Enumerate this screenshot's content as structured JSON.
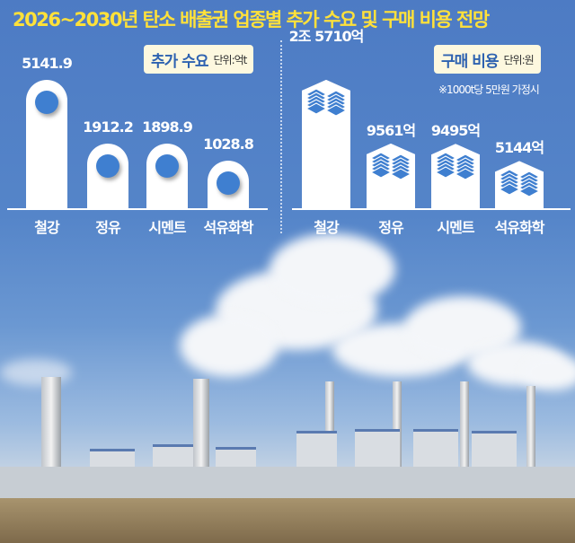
{
  "title": "2026~2030년 탄소 배출권 업종별 추가 수요 및 구매 비용 전망",
  "chart_data": [
    {
      "type": "bar",
      "legend_key": "추가 수요",
      "unit": "단위:억t",
      "categories": [
        "철강",
        "정유",
        "시멘트",
        "석유화학"
      ],
      "values": [
        5141.9,
        1912.2,
        1898.9,
        1028.8
      ],
      "value_labels": [
        "5141.9",
        "1912.2",
        "1898.9",
        "1028.8"
      ],
      "bar_color": "#ffffff",
      "marker_color": "#3f7fd0"
    },
    {
      "type": "bar",
      "legend_key": "구매 비용",
      "unit": "단위:원",
      "note": "※1000t당 5만원 가정시",
      "categories": [
        "철강",
        "정유",
        "시멘트",
        "석유화학"
      ],
      "values": [
        25710,
        9561,
        9495,
        5144
      ],
      "value_unit": "억원",
      "value_labels": [
        "2조 5710억",
        "9561억",
        "9495억",
        "5144억"
      ],
      "bar_color": "#ffffff",
      "icon": "money-stack-icon"
    }
  ],
  "colors": {
    "title": "#ffe13a",
    "background": "#4d7bc4",
    "legend_bg": "#fdf8df",
    "legend_text": "#2e62b0"
  }
}
